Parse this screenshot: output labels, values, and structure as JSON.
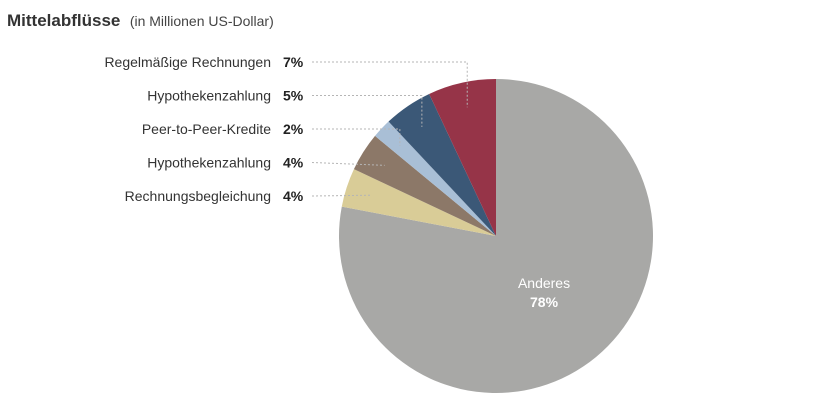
{
  "chart_data": {
    "type": "pie",
    "title": "Mittelabflüsse",
    "subtitle": "(in Millionen US-Dollar)",
    "slices": [
      {
        "label": "Anderes",
        "value": 78,
        "display": "78%",
        "color": "#a8a8a6"
      },
      {
        "label": "Rechnungsbegleichung",
        "value": 4,
        "display": "4%",
        "color": "#d9cc97"
      },
      {
        "label": "Hypothekenzahlung",
        "value": 4,
        "display": "4%",
        "color": "#8c7868"
      },
      {
        "label": "Peer-to-Peer-Kredite",
        "value": 2,
        "display": "2%",
        "color": "#a9bfd6"
      },
      {
        "label": "Hypothekenzahlung",
        "value": 5,
        "display": "5%",
        "color": "#3b5877"
      },
      {
        "label": "Regelmäßige Rechnungen",
        "value": 7,
        "display": "7%",
        "color": "#963448"
      }
    ],
    "legend_placement": "left"
  }
}
